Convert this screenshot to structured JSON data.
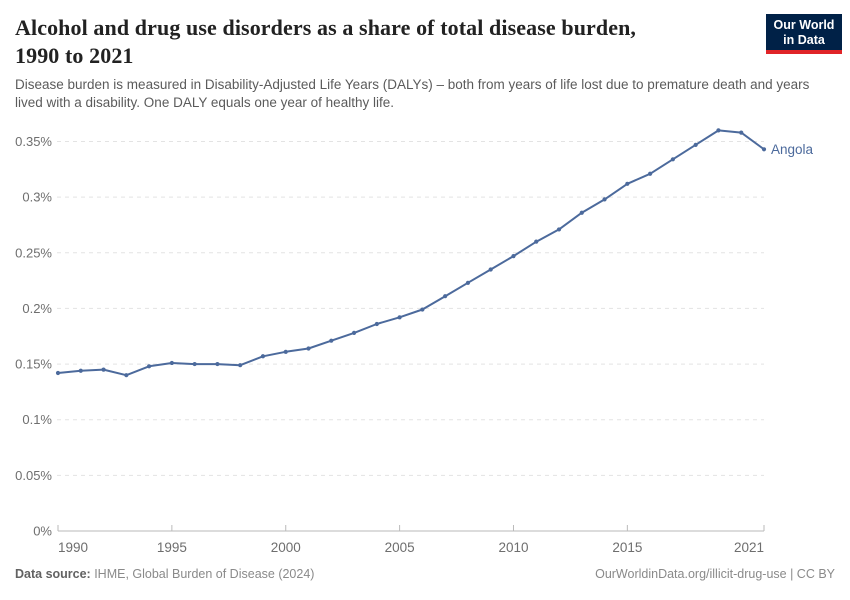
{
  "header": {
    "title_line1": "Alcohol and drug use disorders as a share of total disease burden,",
    "title_line2": "1990 to 2021",
    "subtitle": "Disease burden is measured in Disability-Adjusted Life Years (DALYs) – both from years of life lost due to premature death and years lived with a disability. One DALY equals one year of healthy life.",
    "logo": {
      "line1": "Our World",
      "line2": "in Data",
      "bg_color": "#002147",
      "stripe_color": "#e02428"
    }
  },
  "chart_data": {
    "type": "line",
    "title": "Alcohol and drug use disorders as a share of total disease burden, 1990 to 2021",
    "unit": "%",
    "x": [
      1990,
      1991,
      1992,
      1993,
      1994,
      1995,
      1996,
      1997,
      1998,
      1999,
      2000,
      2001,
      2002,
      2003,
      2004,
      2005,
      2006,
      2007,
      2008,
      2009,
      2010,
      2011,
      2012,
      2013,
      2014,
      2015,
      2016,
      2017,
      2018,
      2019,
      2020,
      2021
    ],
    "series": [
      {
        "name": "Angola",
        "color": "#4c6a9c",
        "values": [
          0.142,
          0.144,
          0.145,
          0.14,
          0.148,
          0.151,
          0.15,
          0.15,
          0.149,
          0.157,
          0.161,
          0.164,
          0.171,
          0.178,
          0.186,
          0.192,
          0.199,
          0.211,
          0.223,
          0.235,
          0.247,
          0.26,
          0.271,
          0.286,
          0.298,
          0.312,
          0.321,
          0.334,
          0.347,
          0.36,
          0.358,
          0.343
        ]
      }
    ],
    "x_ticks": [
      1990,
      1995,
      2000,
      2005,
      2010,
      2015,
      2021
    ],
    "y_ticks": [
      0,
      0.05,
      0.1,
      0.15,
      0.2,
      0.25,
      0.3,
      0.35
    ],
    "y_tick_labels": [
      "0%",
      "0.05%",
      "0.1%",
      "0.15%",
      "0.2%",
      "0.25%",
      "0.3%",
      "0.35%"
    ],
    "ylim": [
      0,
      0.35
    ],
    "xlim": [
      1990,
      2021
    ],
    "grid": "dashed-horizontal",
    "legend_position": "end-of-line-label",
    "colors": {
      "gridline": "#e3e3e3",
      "axis": "#bababa",
      "tick_text": "#6e6e6e"
    }
  },
  "footer": {
    "data_source_label": "Data source:",
    "data_source_value": " IHME, Global Burden of Disease (2024)",
    "credit": "OurWorldinData.org/illicit-drug-use | CC BY"
  }
}
